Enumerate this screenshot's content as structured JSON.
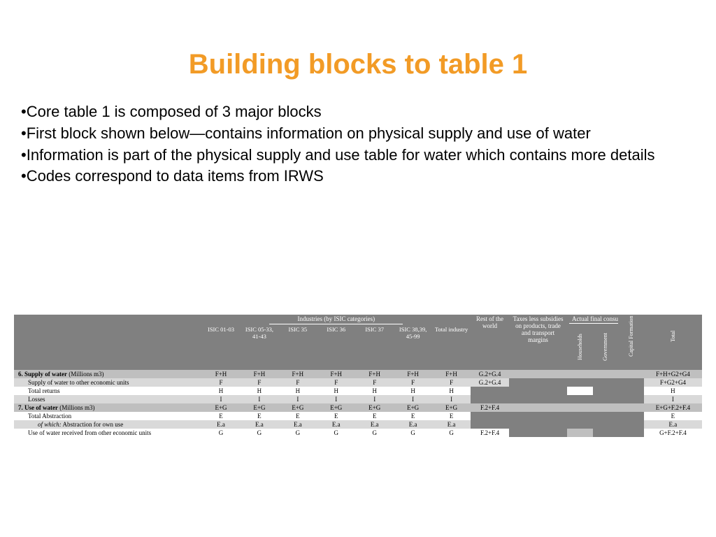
{
  "title": "Building blocks to table 1",
  "title_color": "#f29b26",
  "bullets": [
    "Core table 1 is composed of 3 major blocks",
    "First block shown below—contains information on physical supply and use of water",
    "Information is part of the physical supply and use table for water which contains more details",
    "Codes correspond to data items from IRWS"
  ],
  "table": {
    "header_bg": "#808080",
    "header_fg": "#ffffff",
    "group_headers": {
      "industries": "Industries (by ISIC categories)",
      "rest_world": "Rest of the world",
      "taxes": "Taxes less subsidies on products, trade and transport margins",
      "consumption": "Actual final consumption"
    },
    "col_headers": {
      "isic01": "ISIC 01-03",
      "isic05": "ISIC 05-33, 41-43",
      "isic35": "ISIC 35",
      "isic36": "ISIC 36",
      "isic37": "ISIC 37",
      "isic38": "ISIC 38,39, 45-99",
      "total_ind": "Total industry",
      "households": "Households",
      "government": "Government",
      "capital": "Capital Formation",
      "total": "Total"
    },
    "rows": [
      {
        "kind": "section",
        "label_bold": "6. Supply of water",
        "label_unit": " (Millions m3)",
        "cells": [
          "F+H",
          "F+H",
          "F+H",
          "F+H",
          "F+H",
          "F+H",
          "F+H",
          "G.2+G.4",
          "",
          "",
          "",
          "",
          "F+H+G2+G4"
        ],
        "row_class": "row-header"
      },
      {
        "kind": "sub",
        "label": "Supply of water to other economic units",
        "indent": 1,
        "cells": [
          "F",
          "F",
          "F",
          "F",
          "F",
          "F",
          "F",
          "G.2+G.4",
          "",
          "",
          "",
          "",
          "F+G2+G4"
        ],
        "row_class": "row-light",
        "grey_cols": [
          8,
          9,
          10,
          11
        ]
      },
      {
        "kind": "sub",
        "label": "Total returns",
        "indent": 1,
        "cells": [
          "H",
          "H",
          "H",
          "H",
          "H",
          "H",
          "H",
          "",
          "",
          "",
          "",
          "",
          "H"
        ],
        "row_class": "row-white",
        "grey_cols": [
          7,
          8,
          10,
          11
        ]
      },
      {
        "kind": "sub",
        "label": "Losses",
        "indent": 1,
        "cells": [
          "I",
          "I",
          "I",
          "I",
          "I",
          "I",
          "I",
          "",
          "",
          "",
          "",
          "",
          "I"
        ],
        "row_class": "row-light",
        "grey_cols": [
          7,
          8,
          9,
          10,
          11
        ]
      },
      {
        "kind": "section",
        "label_bold": "7. Use of water",
        "label_unit": " (Millions m3)",
        "cells": [
          "E+G",
          "E+G",
          "E+G",
          "E+G",
          "E+G",
          "E+G",
          "E+G",
          "F.2+F.4",
          "",
          "",
          "",
          "",
          "E+G+F.2+F.4"
        ],
        "row_class": "row-header"
      },
      {
        "kind": "sub",
        "label": "Total Abstraction",
        "indent": 1,
        "cells": [
          "E",
          "E",
          "E",
          "E",
          "E",
          "E",
          "E",
          "",
          "",
          "",
          "",
          "",
          "E"
        ],
        "row_class": "row-white",
        "grey_cols": [
          7,
          8,
          9,
          10,
          11
        ]
      },
      {
        "kind": "sub",
        "label_italic": "of which:",
        "label_rest": "  Abstraction for own use",
        "indent": 2,
        "cells": [
          "E.a",
          "E.a",
          "E.a",
          "E.a",
          "E.a",
          "E.a",
          "E.a",
          "",
          "",
          "",
          "",
          "",
          "E.a"
        ],
        "row_class": "row-light",
        "grey_cols": [
          7,
          8,
          9,
          10,
          11
        ]
      },
      {
        "kind": "sub",
        "label": "Use of water received from other economic units",
        "indent": 1,
        "cells": [
          "G",
          "G",
          "G",
          "G",
          "G",
          "G",
          "G",
          "F.2+F.4",
          "",
          "",
          "",
          "",
          "G+F.2+F.4"
        ],
        "row_class": "row-white",
        "grey_cols": [
          8,
          10,
          11
        ],
        "lgrey_cols": [
          9
        ]
      }
    ]
  }
}
